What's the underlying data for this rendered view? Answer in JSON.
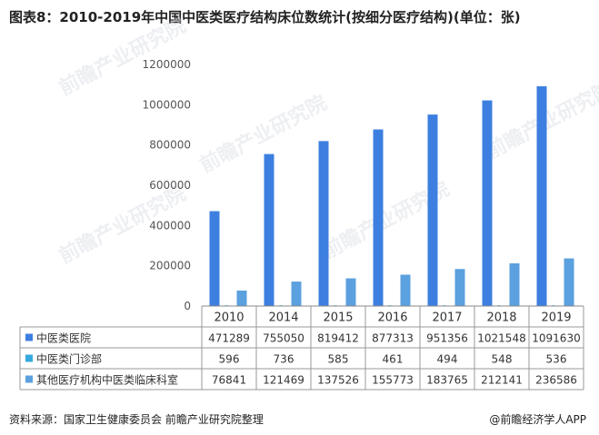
{
  "title": "图表8：2010-2019年中国中医类医疗结构床位数统计(按细分医疗结构)(单位：张)",
  "source": "资料来源：国家卫生健康委员会 前瞻产业研究院整理",
  "brand": "@前瞻经济学人APP",
  "watermark": "前瞻产业研究院",
  "chart_data": {
    "type": "bar",
    "categories": [
      "2010",
      "2014",
      "2015",
      "2016",
      "2017",
      "2018",
      "2019"
    ],
    "series": [
      {
        "name": "中医类医院",
        "values": [
          471289,
          755050,
          819412,
          877313,
          951356,
          1021548,
          1091630
        ],
        "color": "#3d7fe0"
      },
      {
        "name": "中医类门诊部",
        "values": [
          596,
          736,
          585,
          461,
          494,
          548,
          536
        ],
        "color": "#37a9de"
      },
      {
        "name": "其他医疗机构中医类临床科室",
        "values": [
          76841,
          121469,
          137526,
          155773,
          183765,
          212141,
          236586
        ],
        "color": "#5ba0df"
      }
    ],
    "table_values": [
      [
        "471289",
        "755050",
        "819412",
        "877313",
        "951356",
        "1021548",
        "1091630"
      ],
      [
        "596",
        "736",
        "585",
        "461",
        "494",
        "548",
        "536"
      ],
      [
        "76841",
        "121469",
        "137526",
        "155773",
        "183765",
        "212141",
        "236586"
      ]
    ],
    "yticks": [
      "0",
      "200000",
      "400000",
      "600000",
      "800000",
      "1000000",
      "1200000"
    ],
    "ylim": [
      0,
      1200000
    ],
    "grid": false,
    "legend": "data-table-left"
  }
}
